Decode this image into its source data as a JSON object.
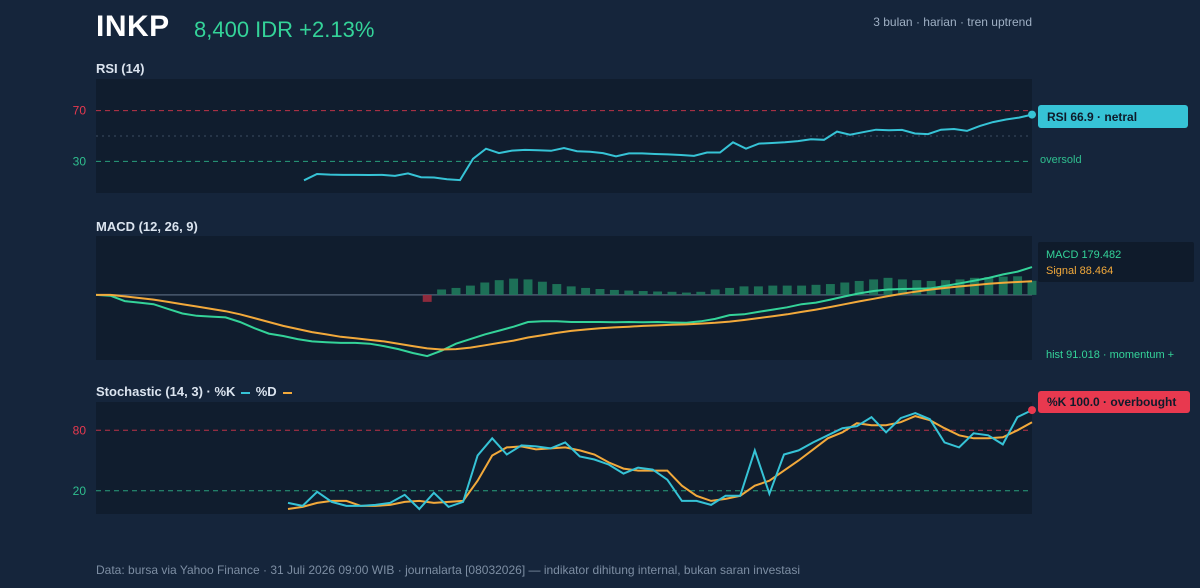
{
  "header": {
    "ticker": "INKP",
    "price": "8,400 IDR +2.13%",
    "meta": "3 bulan · harian · tren uptrend"
  },
  "footer": "Data: bursa via Yahoo Finance · 31 Juli 2026 09:00 WIB · journalarta [08032026] — indikator dihitung internal, bukan saran investasi",
  "colors": {
    "panel_bg": "#101d2e",
    "rsi": "#36c3d6",
    "macd": "#34d399",
    "signal": "#f2a93b",
    "hist_pos": "#1f7a5c",
    "hist_neg": "#9b2c3e",
    "overbought": "#e8394f",
    "oversold": "#2fbf8f",
    "tag_rsi": "#36c3d6",
    "tag_k": "#e8394f"
  },
  "chart_data": [
    {
      "type": "line",
      "title": "RSI (14)",
      "ylim": [
        5,
        95
      ],
      "levels": [
        {
          "value": 70,
          "label": "70"
        },
        {
          "value": 30,
          "label": "30"
        }
      ],
      "midline": 50,
      "side_label": "oversold",
      "tag": "RSI 66.9 · netral",
      "series": [
        {
          "values": [
            15,
            20,
            19.5,
            19.3,
            19.3,
            19.2,
            19.3,
            18.5,
            20.5,
            17.5,
            17.2,
            15.8,
            15.2,
            32,
            40,
            36.5,
            38.5,
            39,
            38.8,
            38.3,
            40.5,
            38,
            37.5,
            36.5,
            34,
            36.3,
            36.3,
            35.8,
            35.5,
            35,
            34.3,
            37,
            37,
            45,
            40,
            44,
            44.5,
            45,
            46,
            47.5,
            47,
            53.5,
            51,
            53,
            55,
            54.5,
            54.8,
            52,
            51.5,
            55,
            55.5,
            54,
            58,
            61,
            63,
            64.5,
            66.9
          ]
        }
      ]
    },
    {
      "type": "line",
      "title": "MACD (12, 26, 9)",
      "ylim": [
        -420,
        380
      ],
      "legend": {
        "macd": "MACD 179.482",
        "signal": "Signal 88.464"
      },
      "side_label": "hist 91.018 · momentum +",
      "series": [
        {
          "name": "MACD",
          "values": [
            0,
            -5,
            -40,
            -50,
            -60,
            -90,
            -120,
            -135,
            -140,
            -145,
            -175,
            -215,
            -250,
            -265,
            -285,
            -300,
            -305,
            -310,
            -310,
            -315,
            -330,
            -350,
            -375,
            -395,
            -360,
            -315,
            -285,
            -255,
            -230,
            -205,
            -175,
            -170,
            -170,
            -175,
            -175,
            -175,
            -176,
            -175,
            -176,
            -175,
            -178,
            -180,
            -170,
            -155,
            -130,
            -125,
            -110,
            -95,
            -80,
            -60,
            -50,
            -30,
            -10,
            10,
            25,
            35,
            38,
            40,
            42,
            58,
            75,
            92,
            110,
            132,
            150,
            179.5
          ]
        },
        {
          "name": "Signal",
          "values": [
            0,
            0,
            -10,
            -20,
            -30,
            -45,
            -60,
            -75,
            -90,
            -105,
            -125,
            -150,
            -175,
            -200,
            -220,
            -240,
            -255,
            -270,
            -280,
            -290,
            -300,
            -315,
            -330,
            -345,
            -352,
            -350,
            -340,
            -325,
            -310,
            -295,
            -275,
            -260,
            -245,
            -232,
            -223,
            -215,
            -210,
            -205,
            -200,
            -197,
            -193,
            -190,
            -185,
            -180,
            -172,
            -162,
            -150,
            -138,
            -125,
            -110,
            -95,
            -78,
            -60,
            -42,
            -25,
            -8,
            8,
            22,
            35,
            45,
            55,
            63,
            72,
            78,
            83,
            88.5
          ]
        },
        {
          "name": "hist",
          "values": [
            0,
            0,
            0,
            0,
            0,
            0,
            0,
            0,
            0,
            0,
            0,
            0,
            0,
            0,
            0,
            0,
            0,
            0,
            0,
            0,
            0,
            0,
            0,
            -45,
            35,
            45,
            60,
            80,
            95,
            105,
            100,
            85,
            70,
            55,
            45,
            38,
            32,
            28,
            25,
            22,
            20,
            15,
            20,
            35,
            45,
            55,
            55,
            60,
            60,
            60,
            65,
            70,
            80,
            90,
            100,
            110,
            100,
            95,
            90,
            95,
            100,
            110,
            115,
            118,
            120,
            91
          ]
        }
      ]
    },
    {
      "type": "line",
      "title": "Stochastic (14, 3) · %K",
      "legend": {
        "k": "%K",
        "d": "%D"
      },
      "ylim": [
        -3,
        108
      ],
      "levels": [
        {
          "value": 80,
          "label": "80"
        },
        {
          "value": 20,
          "label": "20"
        }
      ],
      "tag": "%K 100.0 · overbought",
      "series": [
        {
          "name": "%K",
          "values": [
            8,
            5,
            19,
            9,
            5,
            5,
            6,
            8,
            16,
            2,
            18,
            4,
            9,
            55,
            72,
            56,
            65,
            64,
            62,
            68,
            54,
            51,
            46,
            37,
            43,
            41,
            31,
            10,
            10,
            6,
            15,
            15,
            60,
            17,
            56,
            60,
            68,
            75,
            82,
            84,
            93,
            78,
            92,
            97,
            91,
            68,
            63,
            77,
            75,
            66,
            93,
            100
          ]
        },
        {
          "name": "%D",
          "values": [
            2,
            4,
            8,
            10,
            10,
            5,
            5,
            6,
            9,
            10,
            8,
            9,
            10,
            30,
            55,
            63,
            64,
            61,
            62,
            63,
            60,
            56,
            48,
            42,
            40,
            40,
            40,
            25,
            15,
            10,
            12,
            15,
            25,
            30,
            40,
            50,
            61,
            72,
            78,
            87,
            85,
            85,
            88,
            94,
            90,
            82,
            75,
            72,
            72,
            73,
            80,
            88
          ]
        }
      ]
    }
  ]
}
